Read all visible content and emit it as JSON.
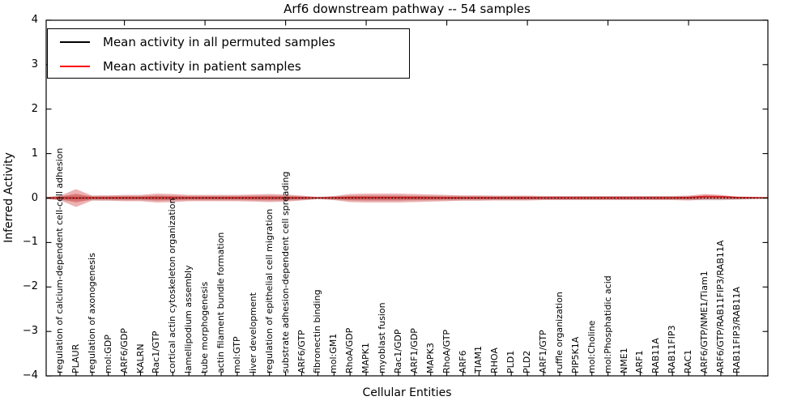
{
  "chart_data": {
    "type": "line",
    "title": "Arf6 downstream pathway -- 54 samples",
    "xlabel": "Cellular Entities",
    "ylabel": "Inferred Activity",
    "ylim": [
      -4,
      4
    ],
    "ytick_labels": [
      "4",
      "3",
      "2",
      "1",
      "0",
      "−1",
      "−2",
      "−3",
      "−4"
    ],
    "grid": false,
    "legend_position": "upper left",
    "categories": [
      "regulation of calcium-dependent cell-cell adhesion",
      "PLAUR",
      "regulation of axonogenesis",
      "mol:GDP",
      "ARF6/GDP",
      "KALRN",
      "Rac1/GTP",
      "cortical actin cytoskeleton organization",
      "lamellipodium assembly",
      "tube morphogenesis",
      "actin filament bundle formation",
      "mol:GTP",
      "liver development",
      "regulation of epithelial cell migration",
      "substrate adhesion-dependent cell spreading",
      "ARF6/GTP",
      "fibronectin binding",
      "mol:GM1",
      "RhoA/GDP",
      "MAPK1",
      "myoblast fusion",
      "Rac1/GDP",
      "ARF1/GDP",
      "MAPK3",
      "RhoA/GTP",
      "ARF6",
      "TIAM1",
      "RHOA",
      "PLD1",
      "PLD2",
      "ARF1/GTP",
      "ruffle organization",
      "PIP5K1A",
      "mol:Choline",
      "mol:Phosphatidic acid",
      "NME1",
      "ARF1",
      "RAB11A",
      "RAB11FIP3",
      "RAC1",
      "ARF6/GTP/NME1/Tiam1",
      "ARF6/GTP/RAB11FIP3/RAB11A",
      "RAB11FIP3/RAB11A"
    ],
    "series": [
      {
        "name": "Mean activity in all permuted samples",
        "color": "#000000",
        "linestyle": "dotted",
        "values": [
          0,
          0,
          0,
          0,
          0,
          0,
          0,
          0,
          0,
          0,
          0,
          0,
          0,
          0,
          0,
          0,
          0,
          0,
          0,
          0,
          0,
          0,
          0,
          0,
          0,
          0,
          0,
          0,
          0,
          0,
          0,
          0,
          0,
          0,
          0,
          0,
          0,
          0,
          0,
          0,
          0,
          0,
          0
        ]
      },
      {
        "name": "Mean activity in patient samples",
        "color": "#d62222",
        "linestyle": "solid",
        "values": [
          0.005,
          0,
          0.005,
          0.005,
          0.005,
          0.005,
          0.005,
          0.005,
          0.005,
          0.005,
          0.005,
          0.005,
          0.005,
          0.005,
          0.005,
          0.005,
          0.005,
          0.005,
          0.008,
          0.008,
          0.008,
          0.008,
          0.008,
          0.005,
          0.005,
          0.005,
          0.005,
          0.005,
          0.005,
          0.005,
          0.005,
          0.005,
          0.005,
          0.005,
          0.005,
          0.005,
          0.005,
          0.005,
          0.005,
          0.01,
          0.035,
          0.03,
          0.01
        ]
      }
    ],
    "bands": {
      "permuted": {
        "color": "#aaaaaa",
        "opacity": 0.45,
        "upper": [
          0.05,
          0.06,
          0.055,
          0.05,
          0.05,
          0.05,
          0.06,
          0.055,
          0.05,
          0.05,
          0.05,
          0.05,
          0.055,
          0.06,
          0.055,
          0.045,
          0.03,
          0.04,
          0.055,
          0.06,
          0.06,
          0.06,
          0.055,
          0.05,
          0.05,
          0.05,
          0.05,
          0.045,
          0.045,
          0.045,
          0.04,
          0.04,
          0.04,
          0.04,
          0.04,
          0.04,
          0.04,
          0.04,
          0.04,
          0.045,
          0.05,
          0.05,
          0.04
        ],
        "lower": [
          -0.05,
          -0.06,
          -0.055,
          -0.05,
          -0.05,
          -0.05,
          -0.06,
          -0.055,
          -0.05,
          -0.05,
          -0.05,
          -0.05,
          -0.055,
          -0.06,
          -0.055,
          -0.045,
          -0.03,
          -0.04,
          -0.055,
          -0.06,
          -0.06,
          -0.06,
          -0.055,
          -0.05,
          -0.05,
          -0.05,
          -0.05,
          -0.045,
          -0.045,
          -0.045,
          -0.04,
          -0.04,
          -0.04,
          -0.04,
          -0.04,
          -0.04,
          -0.04,
          -0.04,
          -0.04,
          -0.045,
          -0.05,
          -0.05,
          -0.04
        ]
      },
      "patient": {
        "color": "#cc2222",
        "opacity": 0.35,
        "upper": [
          0.05,
          0.2,
          0.055,
          0.06,
          0.07,
          0.07,
          0.1,
          0.09,
          0.07,
          0.07,
          0.07,
          0.07,
          0.08,
          0.09,
          0.08,
          0.055,
          0.02,
          0.045,
          0.09,
          0.1,
          0.1,
          0.1,
          0.09,
          0.08,
          0.07,
          0.06,
          0.06,
          0.055,
          0.055,
          0.055,
          0.045,
          0.045,
          0.045,
          0.045,
          0.045,
          0.045,
          0.045,
          0.045,
          0.045,
          0.055,
          0.09,
          0.07,
          0.03
        ],
        "lower": [
          -0.05,
          -0.2,
          -0.055,
          -0.06,
          -0.07,
          -0.07,
          -0.1,
          -0.09,
          -0.07,
          -0.07,
          -0.07,
          -0.07,
          -0.08,
          -0.09,
          -0.08,
          -0.055,
          -0.02,
          -0.045,
          -0.09,
          -0.1,
          -0.1,
          -0.1,
          -0.09,
          -0.08,
          -0.07,
          -0.06,
          -0.06,
          -0.055,
          -0.055,
          -0.055,
          -0.045,
          -0.045,
          -0.045,
          -0.045,
          -0.045,
          -0.045,
          -0.045,
          -0.045,
          -0.045,
          -0.055,
          -0.035,
          -0.035,
          -0.03
        ]
      }
    }
  },
  "legend": {
    "items": [
      {
        "label": "Mean activity in all permuted samples",
        "color": "#000000"
      },
      {
        "label": "Mean activity in patient samples",
        "color": "#ff0000"
      }
    ]
  }
}
